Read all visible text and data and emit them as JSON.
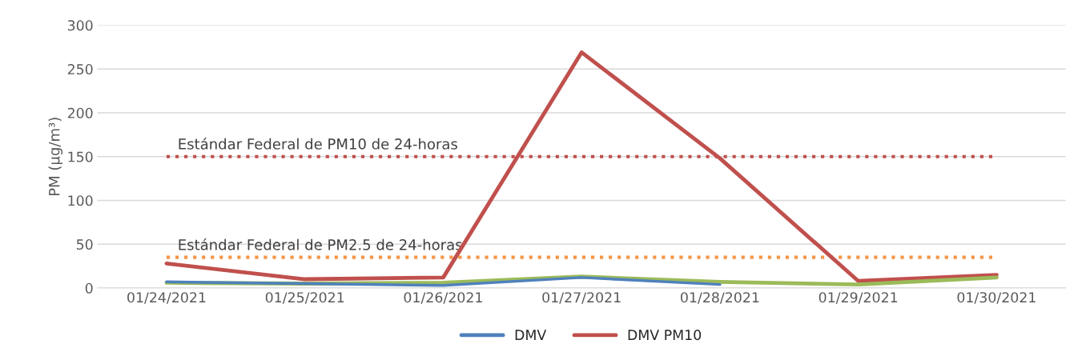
{
  "chart_data": {
    "type": "line",
    "ylabel": "PM (µg/m³)",
    "categories": [
      "01/24/2021",
      "01/25/2021",
      "01/26/2021",
      "01/27/2021",
      "01/28/2021",
      "01/29/2021",
      "01/30/2021"
    ],
    "series": [
      {
        "name": "DMV",
        "color": "#4f81bd",
        "values": [
          7,
          5,
          3,
          12,
          4,
          null,
          null
        ]
      },
      {
        "name": "DMV PM10",
        "color": "#c0504d",
        "values": [
          28,
          10,
          12,
          269,
          148,
          8,
          15
        ]
      },
      {
        "color": "#9bbb59",
        "values": [
          6,
          5,
          6,
          13,
          7,
          4,
          12
        ]
      }
    ],
    "ref_lines": [
      {
        "axis": "y",
        "value": 150,
        "label": "Estándar Federal de PM10 de 24-horas",
        "color": "#c0504d",
        "line_style": "dotted"
      },
      {
        "axis": "y",
        "value": 35,
        "label": "Estándar Federal de PM2.5 de 24-horas",
        "color": "#f79646",
        "line_style": "dotted"
      }
    ],
    "ylim": [
      0,
      300
    ],
    "yticks": [
      0,
      50,
      100,
      150,
      200,
      250,
      300
    ],
    "grid": "y",
    "legend": "bottom",
    "marker": "none",
    "line_style": "solid"
  }
}
